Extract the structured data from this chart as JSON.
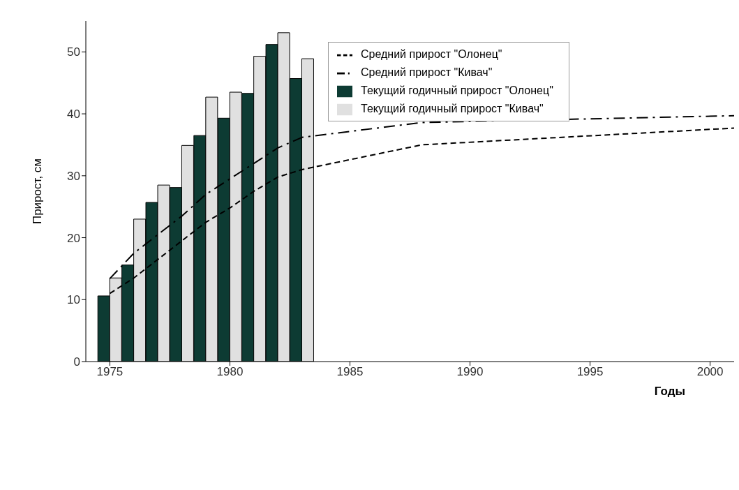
{
  "chart_data": {
    "type": "bar",
    "xlabel": "Годы",
    "ylabel": "Прирост, см",
    "x": [
      1975,
      1976,
      1977,
      1978,
      1979,
      1980,
      1981,
      1982,
      1983
    ],
    "series": [
      {
        "name": "Текущий годичный прирост  \"Олонец\"",
        "color": "#0d3b33",
        "values": [
          10.6,
          15.6,
          25.7,
          28.1,
          36.5,
          39.3,
          43.3,
          51.2,
          45.7
        ]
      },
      {
        "name": "Текущий годичный прирост \"Кивач\"",
        "color": "#e0e0e0",
        "values": [
          13.5,
          23.0,
          28.5,
          34.9,
          42.7,
          43.5,
          49.3,
          53.1,
          48.9
        ]
      },
      {
        "name": "Средний прирост  \"Олонец\"",
        "type": "line",
        "line_style": "dashed",
        "color": "#000000",
        "x": [
          1975,
          1976,
          1977,
          1978,
          1979,
          1980,
          1981,
          1982,
          1983,
          1988,
          2001
        ],
        "values": [
          11.0,
          13.5,
          16.5,
          19.5,
          22.5,
          24.8,
          27.5,
          29.8,
          31.0,
          35.0,
          37.7
        ]
      },
      {
        "name": "Средний прирост \"Кивач\"",
        "type": "line",
        "line_style": "dashdot",
        "color": "#000000",
        "x": [
          1975,
          1976,
          1977,
          1978,
          1979,
          1980,
          1981,
          1982,
          1983,
          1988,
          2001
        ],
        "values": [
          13.4,
          17.5,
          20.5,
          23.5,
          27.0,
          29.5,
          32.0,
          34.5,
          36.2,
          38.6,
          39.7
        ]
      }
    ],
    "xlim": [
      1974,
      2001
    ],
    "xticks": [
      1975,
      1980,
      1985,
      1990,
      1995,
      2000
    ],
    "ylim": [
      0,
      55
    ],
    "yticks": [
      0,
      10,
      20,
      30,
      40,
      50
    ],
    "grid": false,
    "legend": "top right"
  }
}
